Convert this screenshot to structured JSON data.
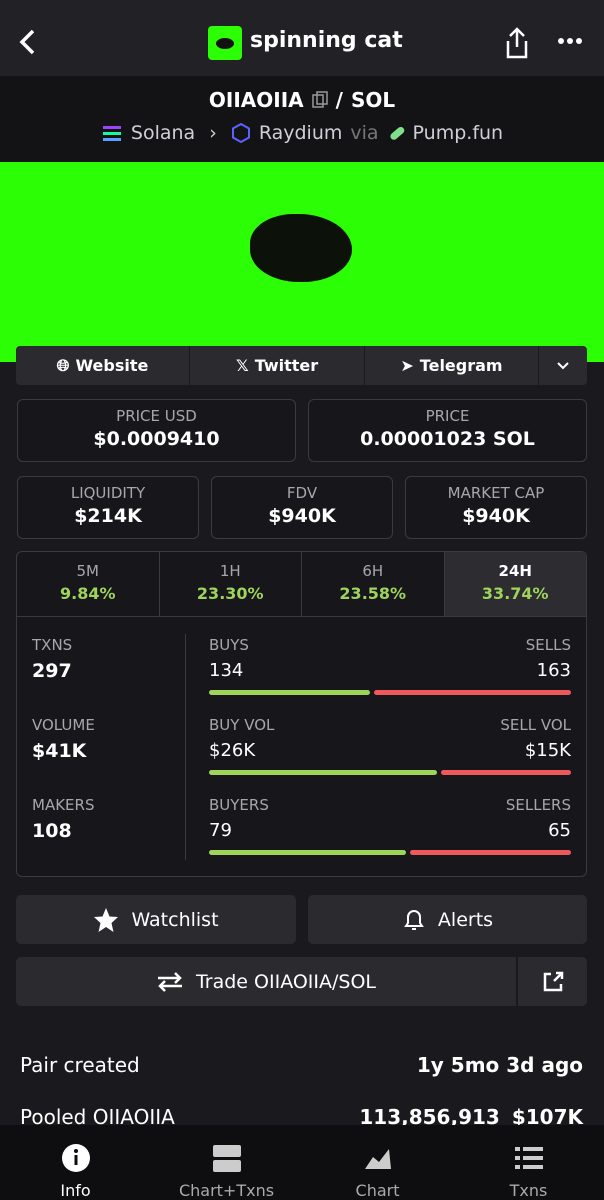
{
  "header": {
    "title": "spinning cat"
  },
  "pair": {
    "base": "OIIAOIIA",
    "separator": "/",
    "quote": "SOL",
    "chain": "Solana",
    "dex": "Raydium",
    "via": "via",
    "launchpad": "Pump.fun"
  },
  "links": [
    "Website",
    "Twitter",
    "Telegram"
  ],
  "prices": [
    {
      "label": "PRICE USD",
      "value": "$0.0009410"
    },
    {
      "label": "PRICE",
      "value": "0.00001023 SOL"
    }
  ],
  "stats": [
    {
      "label": "LIQUIDITY",
      "value": "$214K"
    },
    {
      "label": "FDV",
      "value": "$940K"
    },
    {
      "label": "MARKET CAP",
      "value": "$940K"
    }
  ],
  "timeframes": [
    {
      "label": "5M",
      "change": "9.84%"
    },
    {
      "label": "1H",
      "change": "23.30%"
    },
    {
      "label": "6H",
      "change": "23.58%"
    },
    {
      "label": "24H",
      "change": "33.74%"
    }
  ],
  "active_timeframe": 3,
  "activity": [
    {
      "label": "TXNS",
      "value": 297,
      "left_label": "BUYS",
      "left": 134,
      "right_label": "SELLS",
      "right": 163
    },
    {
      "label": "VOLUME",
      "value": "$41K",
      "left_label": "BUY VOL",
      "left": "$26K",
      "right_label": "SELL VOL",
      "right": "$15K"
    },
    {
      "label": "MAKERS",
      "value": 108,
      "left_label": "BUYERS",
      "left": 79,
      "right_label": "SELLERS",
      "right": 65
    }
  ],
  "actions": {
    "watchlist": "Watchlist",
    "alerts": "Alerts",
    "trade": "Trade OIIAOIIA/SOL"
  },
  "info": [
    {
      "label": "Pair created",
      "value": "1y 5mo 3d ago"
    },
    {
      "label": "Pooled OIIAOIIA",
      "value": "113,856,913",
      "value2": "$107K"
    }
  ],
  "tabs": [
    "Info",
    "Chart+Txns",
    "Chart",
    "Txns"
  ],
  "active_tab": 0
}
